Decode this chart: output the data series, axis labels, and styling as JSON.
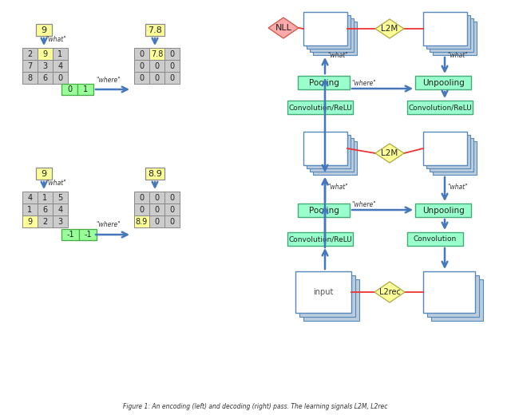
{
  "bg_color": "#ffffff",
  "caption": "Figure 1: An encoding (left) and decoding (right) pass. The learning signals L2M, L2rec",
  "ex1": {
    "input_val": "9",
    "output_val": "7.8",
    "matrix": [
      [
        "2",
        "9",
        "1"
      ],
      [
        "7",
        "3",
        "4"
      ],
      [
        "8",
        "6",
        "0"
      ]
    ],
    "hi_row": 0,
    "hi_col": 1,
    "where_vec": [
      "0",
      "1"
    ],
    "out_matrix": [
      [
        "0",
        "7.8",
        "0"
      ],
      [
        "0",
        "0",
        "0"
      ],
      [
        "0",
        "0",
        "0"
      ]
    ],
    "out_hi_row": 0,
    "out_hi_col": 1
  },
  "ex2": {
    "input_val": "9",
    "output_val": "8.9",
    "matrix": [
      [
        "4",
        "1",
        "5"
      ],
      [
        "1",
        "6",
        "4"
      ],
      [
        "9",
        "2",
        "3"
      ]
    ],
    "hi_row": 2,
    "hi_col": 0,
    "where_vec": [
      "-1",
      "-1"
    ],
    "out_matrix": [
      [
        "0",
        "0",
        "0"
      ],
      [
        "0",
        "0",
        "0"
      ],
      [
        "8.9",
        "0",
        "0"
      ]
    ],
    "out_hi_row": 2,
    "out_hi_col": 0
  },
  "colors": {
    "yellow_box": "#ffff99",
    "green_box": "#99ff99",
    "cell_bg": "#cccccc",
    "blue": "#4477bb",
    "red": "#ee3333",
    "pink": "#ffaaaa",
    "yellow_dia": "#ffff99",
    "green_node": "#99ffcc",
    "stack_face": "#ffffff",
    "stack_edge": "#5588bb",
    "stack_shadow": "#bbccdd"
  }
}
